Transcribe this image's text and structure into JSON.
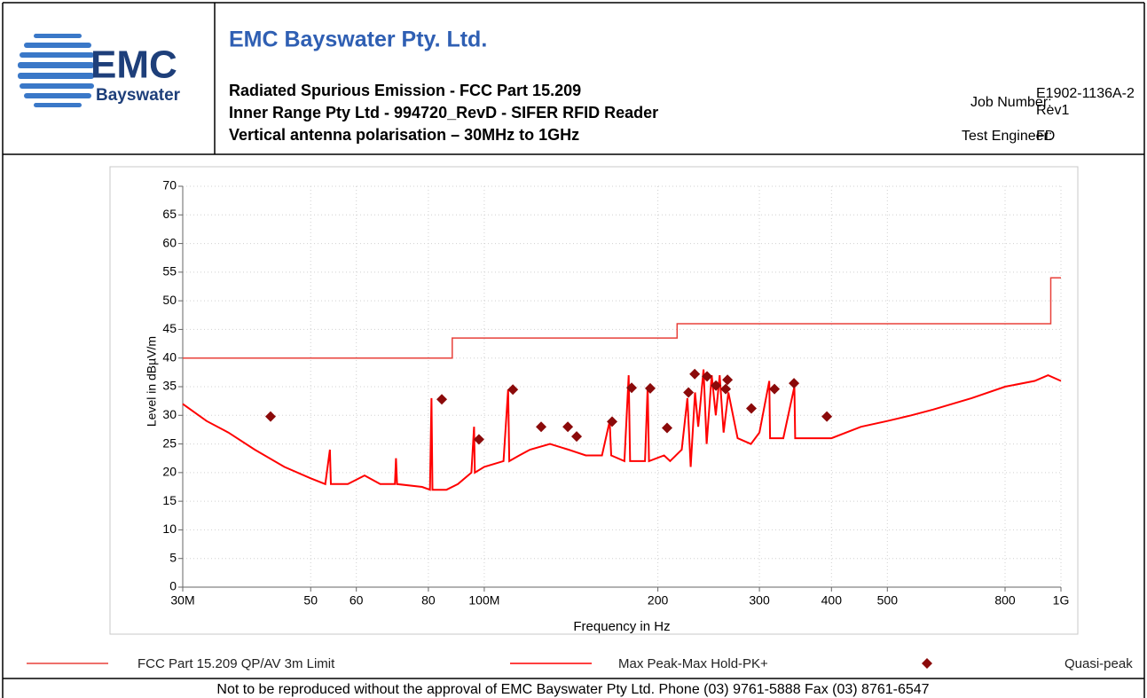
{
  "header": {
    "company": "EMC Bayswater Pty. Ltd.",
    "logo_text": "EMC",
    "logo_subtext": "Bayswater",
    "lines": [
      "Radiated Spurious Emission - FCC Part 15.209",
      "Inner Range Pty Ltd - 994720_RevD - SIFER RFID Reader",
      "Vertical antenna polarisation – 30MHz to 1GHz"
    ],
    "job_number_label": "Job Number:",
    "job_number": [
      "E1902-1136A-2",
      "Rev1"
    ],
    "test_engineer_label": "Test Engineer:",
    "test_engineer": "FD"
  },
  "footer": "Not to be reproduced without the approval of EMC Bayswater Pty Ltd. Phone (03) 9761-5888 Fax (03) 8761-6547",
  "chart_data": {
    "type": "line",
    "x_label": "Frequency in Hz",
    "y_label": "Level in dBµV/m",
    "xscale": "log",
    "grid": true,
    "xlim": [
      30000000,
      1000000000
    ],
    "ylim": [
      0,
      70
    ],
    "xticks": [
      {
        "value": 30000000,
        "label": "30M"
      },
      {
        "value": 50000000,
        "label": "50"
      },
      {
        "value": 60000000,
        "label": "60"
      },
      {
        "value": 80000000,
        "label": "80"
      },
      {
        "value": 100000000,
        "label": "100M"
      },
      {
        "value": 200000000,
        "label": "200"
      },
      {
        "value": 300000000,
        "label": "300"
      },
      {
        "value": 400000000,
        "label": "400"
      },
      {
        "value": 500000000,
        "label": "500"
      },
      {
        "value": 800000000,
        "label": "800"
      },
      {
        "value": 1000000000,
        "label": "1G"
      }
    ],
    "yticks": [
      0,
      5,
      10,
      15,
      20,
      25,
      30,
      35,
      40,
      45,
      50,
      55,
      60,
      65,
      70
    ],
    "series": [
      {
        "name": "FCC Part 15.209 QP/AV 3m Limit",
        "color": "#e8403a",
        "mark": "line",
        "x": [
          30000000,
          88000000,
          88000000,
          216000000,
          216000000,
          960000000,
          960000000,
          1000000000
        ],
        "values": [
          40,
          40,
          43.5,
          43.5,
          46,
          46,
          54,
          54
        ]
      },
      {
        "name": "Max Peak-Max Hold-PK+",
        "color": "#ff0000",
        "mark": "line",
        "x": [
          30000000,
          33000000,
          36000000,
          40000000,
          45000000,
          50000000,
          53000000,
          54000000,
          54200000,
          58000000,
          62000000,
          66000000,
          70000000,
          70300000,
          70600000,
          78000000,
          80500000,
          81000000,
          81300000,
          86000000,
          90000000,
          95000000,
          96000000,
          96300000,
          100000000,
          108000000,
          110000000,
          110500000,
          115000000,
          120000000,
          130000000,
          140000000,
          150000000,
          160000000,
          165000000,
          166000000,
          175000000,
          178000000,
          179000000,
          190000000,
          192000000,
          193000000,
          205000000,
          210000000,
          220000000,
          225000000,
          228000000,
          232000000,
          235000000,
          240000000,
          243000000,
          248000000,
          252000000,
          256000000,
          260000000,
          265000000,
          275000000,
          290000000,
          300000000,
          312000000,
          313000000,
          330000000,
          345000000,
          346000000,
          380000000,
          400000000,
          450000000,
          500000000,
          550000000,
          600000000,
          700000000,
          800000000,
          900000000,
          950000000,
          1000000000
        ],
        "values": [
          32,
          29,
          27,
          24,
          21,
          19,
          18,
          24,
          18,
          18,
          19.5,
          18,
          18,
          22.5,
          18,
          17.5,
          17,
          33,
          17,
          17,
          18,
          20,
          28,
          20,
          21,
          22,
          34.5,
          22,
          23,
          24,
          25,
          24,
          23,
          23,
          29,
          23,
          22,
          37,
          22,
          22,
          35,
          22,
          23,
          22,
          24,
          33,
          21,
          34,
          28,
          38,
          25,
          37,
          30,
          37,
          27,
          34,
          26,
          25,
          27,
          36,
          26,
          26,
          35,
          26,
          26,
          26,
          28,
          29,
          30,
          31,
          33,
          35,
          36,
          37,
          36
        ]
      },
      {
        "name": "Quasi-peak",
        "color": "#8b0a0a",
        "mark": "diamond",
        "x": [
          42600000,
          84400000,
          97900000,
          112100000,
          125500000,
          139600000,
          144600000,
          166600000,
          180100000,
          194000000,
          207500000,
          226000000,
          231700000,
          243400000,
          252200000,
          262200000,
          264100000,
          290500000,
          318600000,
          344400000,
          392700000
        ],
        "values": [
          29.8,
          32.8,
          25.8,
          34.5,
          28,
          28,
          26.3,
          28.9,
          34.8,
          34.7,
          27.8,
          34,
          37.2,
          36.8,
          35.2,
          34.6,
          36.2,
          31.2,
          34.6,
          35.6,
          29.8
        ]
      }
    ]
  }
}
